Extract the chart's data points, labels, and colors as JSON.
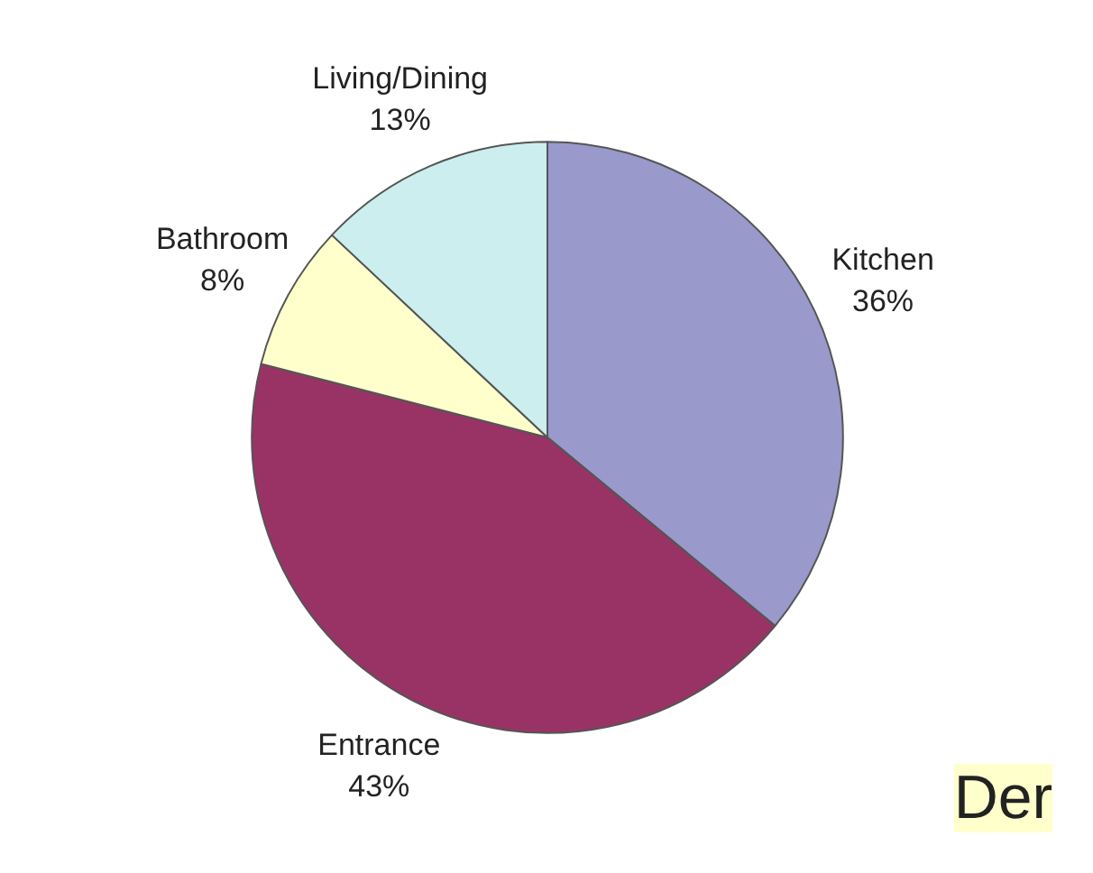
{
  "chart_data": {
    "type": "pie",
    "categories": [
      "Kitchen",
      "Entrance",
      "Bathroom",
      "Living/Dining"
    ],
    "values": [
      36,
      43,
      8,
      13
    ],
    "value_labels": [
      "36%",
      "43%",
      "8%",
      "13%"
    ],
    "colors": [
      "#9999cc",
      "#993366",
      "#ffffcc",
      "#cceeee"
    ],
    "annotations": [
      "Der"
    ]
  }
}
